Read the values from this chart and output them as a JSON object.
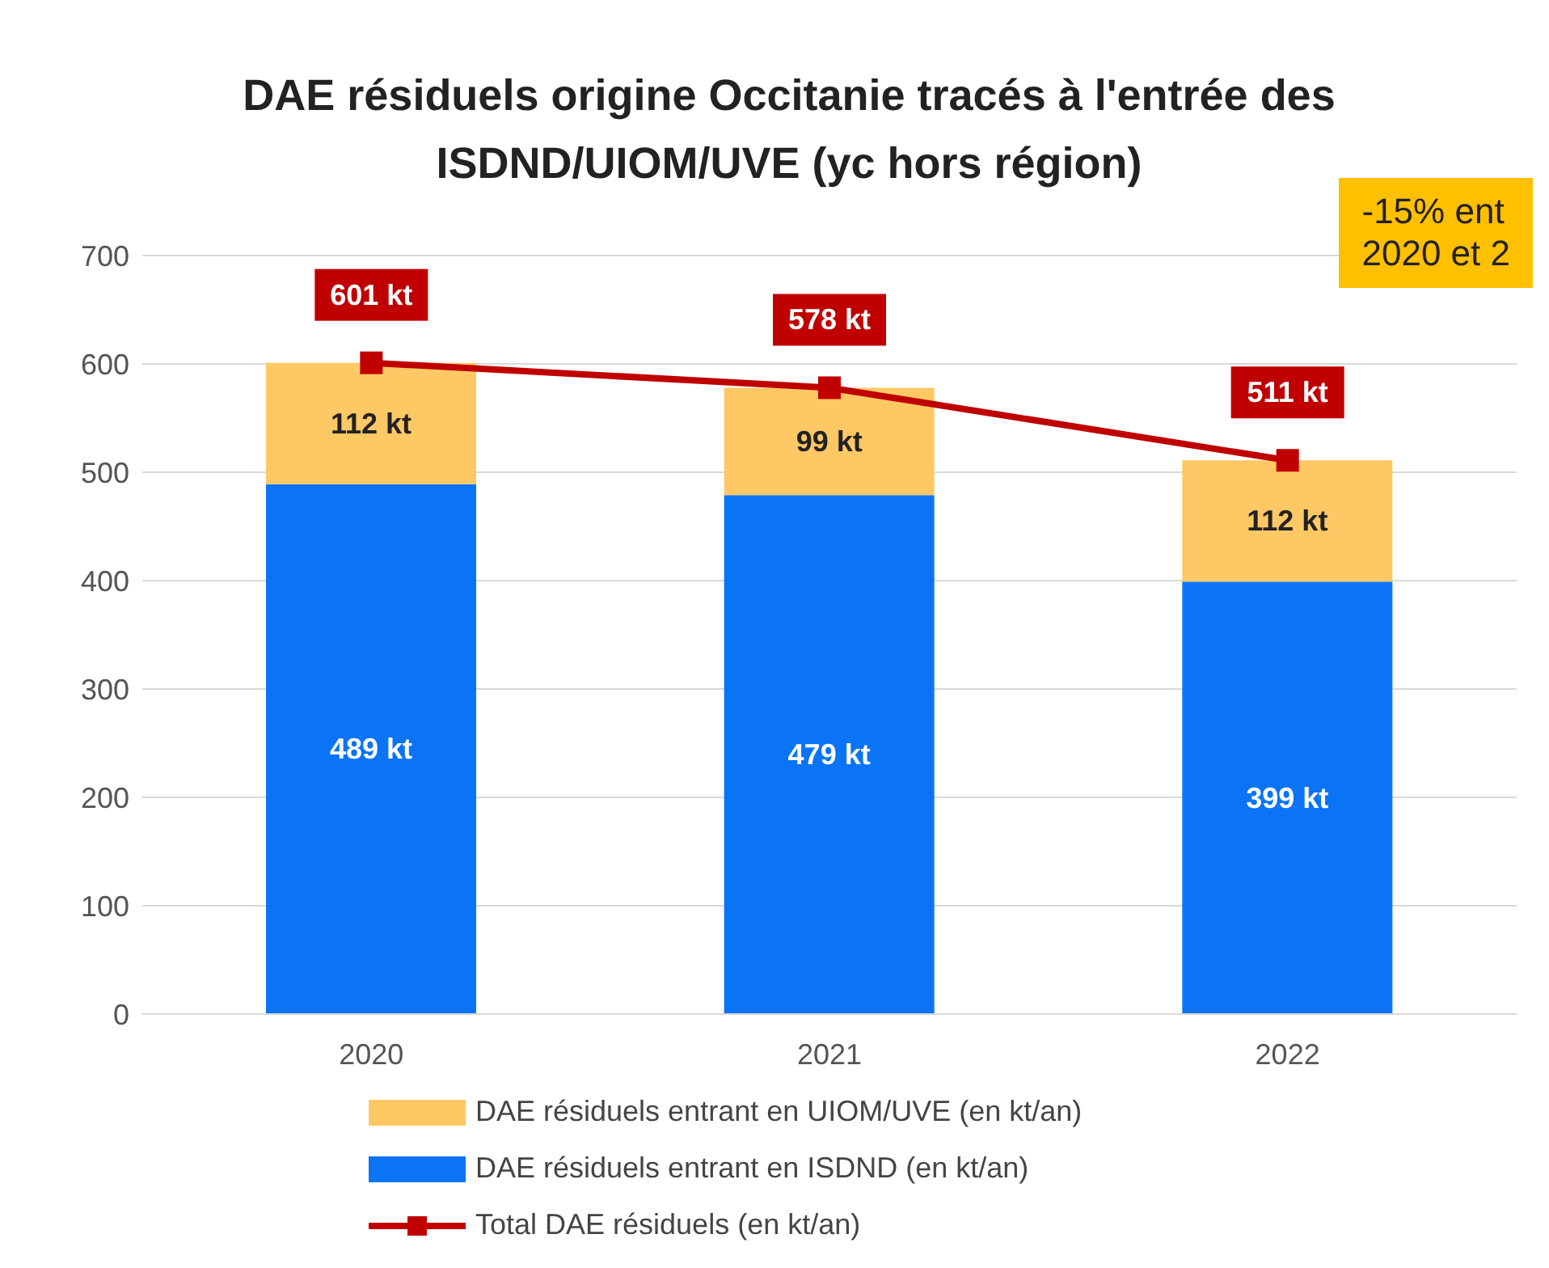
{
  "chart_data": {
    "type": "bar",
    "title": "DAE résiduels origine Occitanie tracés à l'entrée des ISDND/UIOM/UVE (yc hors région)",
    "categories": [
      "2020",
      "2021",
      "2022"
    ],
    "stacked": true,
    "ylim": [
      0,
      700
    ],
    "yticks": [
      0,
      100,
      200,
      300,
      400,
      500,
      600,
      700
    ],
    "grid": "y",
    "legend": "bottom",
    "marker": "square",
    "annotations": [
      "-15% ent\n2020 et 2"
    ],
    "series": [
      {
        "name": "DAE résiduels entrant en ISDND (en kt/an)",
        "color": "#0a74f5",
        "values": [
          489,
          479,
          399
        ],
        "value_labels": [
          "489 kt",
          "479 kt",
          "399 kt"
        ]
      },
      {
        "name": "DAE résiduels entrant en UIOM/UVE (en kt/an)",
        "color": "#fec865",
        "values": [
          112,
          99,
          112
        ],
        "value_labels": [
          "112 kt",
          "99 kt",
          "112 kt"
        ]
      },
      {
        "name": "Total DAE résiduels (en kt/an)",
        "type": "line",
        "color": "#c00000",
        "values": [
          601,
          578,
          511
        ],
        "value_labels": [
          "601 kt",
          "578 kt",
          "511 kt"
        ]
      }
    ]
  }
}
